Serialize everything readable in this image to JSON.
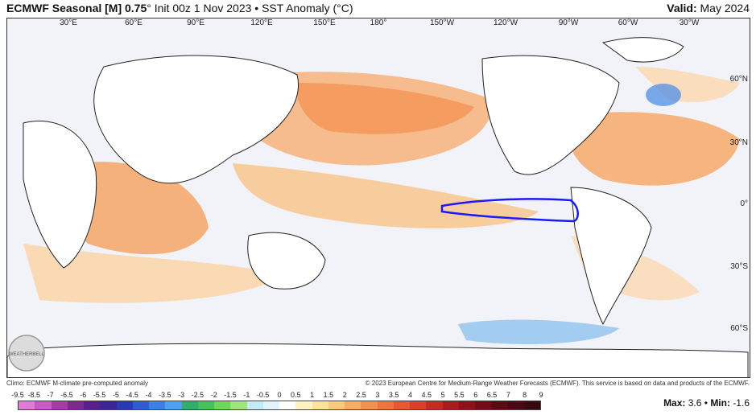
{
  "header": {
    "title_bold": "ECMWF Seasonal [M] 0.75",
    "title_rest": "° Init 00z 1 Nov 2023 • SST Anomaly (°C)",
    "valid_label": "Valid:",
    "valid_value": "May 2024"
  },
  "map": {
    "lon_labels": [
      "30°E",
      "60°E",
      "90°E",
      "120°E",
      "150°E",
      "180°",
      "150°W",
      "120°W",
      "90°W",
      "60°W",
      "30°W"
    ],
    "lat_labels": [
      "60°N",
      "30°N",
      "0°",
      "30°S",
      "60°S"
    ],
    "highlight_region": "Niño 3.4",
    "highlight_color": "#1a1aff"
  },
  "footer": {
    "left": "Climo: ECMWF M-climate pre-computed anomaly",
    "right": "© 2023 European Centre for Medium-Range Weather Forecasts (ECMWF). This service is based on data and products of the ECMWF."
  },
  "logo": {
    "text": "WEATHERBELL"
  },
  "colorbar": {
    "ticks": [
      "-9.5",
      "-8.5",
      "-7",
      "-6.5",
      "-6",
      "-5.5",
      "-5",
      "-4.5",
      "-4",
      "-3.5",
      "-3",
      "-2.5",
      "-2",
      "-1.5",
      "-1",
      "-0.5",
      "0",
      "0.5",
      "1",
      "1.5",
      "2",
      "2.5",
      "3",
      "3.5",
      "4",
      "4.5",
      "5",
      "5.5",
      "6",
      "6.5",
      "7",
      "8",
      "9"
    ],
    "colors": [
      "#e07bd6",
      "#c85ac8",
      "#a63aa8",
      "#7d2a90",
      "#5a1f8a",
      "#3a2596",
      "#2a3ab4",
      "#2f5cd2",
      "#3d7fe8",
      "#4fa0f0",
      "#2fae6a",
      "#45c25a",
      "#6fd85a",
      "#9ee57c",
      "#c4ecf4",
      "#e2f4fb",
      "#ffffff",
      "#fdf3c0",
      "#fde29a",
      "#fbc97a",
      "#f8ad63",
      "#f4904f",
      "#ee7440",
      "#e55a33",
      "#d9402a",
      "#c42b22",
      "#aa1b1c",
      "#8e1118",
      "#740c16",
      "#5c0b14",
      "#4a0912",
      "#3a0810"
    ]
  },
  "stats": {
    "max_label": "Max:",
    "max_value": "3.6",
    "min_label": "Min:",
    "min_value": "-1.6"
  }
}
